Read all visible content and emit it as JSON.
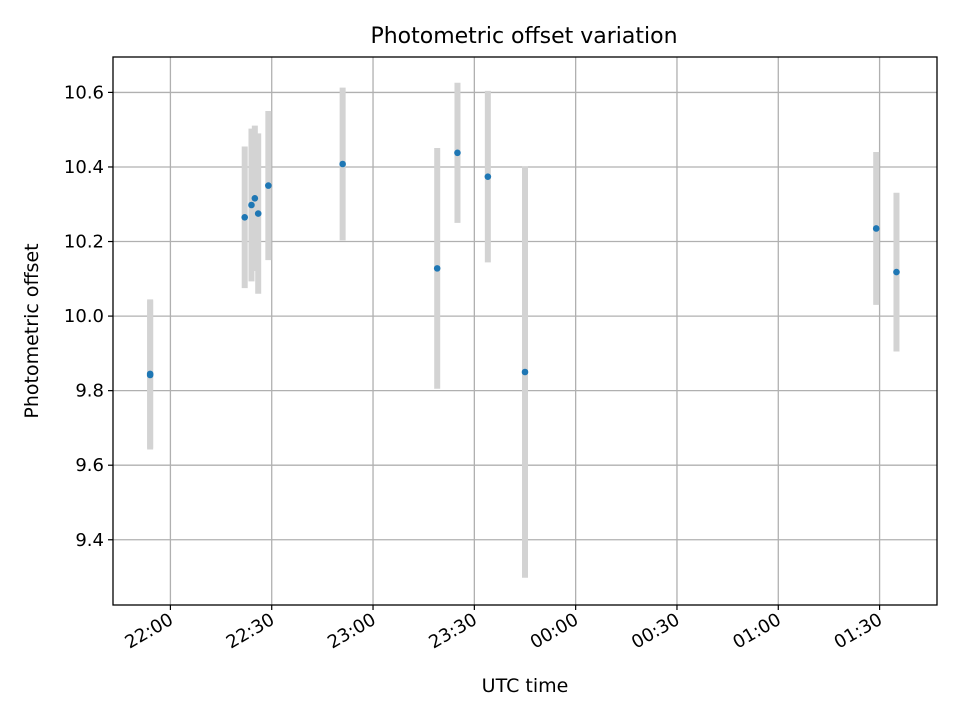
{
  "chart_data": {
    "type": "scatter",
    "title": "Photometric offset variation",
    "xlabel": "UTC time",
    "ylabel": "Photometric offset",
    "x_unit": "UTC time (HH:MM, hours on a continuous scale crossing midnight)",
    "xlim": [
      "21:43",
      "01:47"
    ],
    "ylim": [
      9.225,
      10.695
    ],
    "x_ticks": [
      "22:00",
      "22:30",
      "23:00",
      "23:30",
      "00:00",
      "00:30",
      "01:00",
      "01:30"
    ],
    "y_ticks": [
      "9.4",
      "9.6",
      "9.8",
      "10.0",
      "10.2",
      "10.4",
      "10.6"
    ],
    "grid": true,
    "colors": {
      "points": "#1f77b4",
      "errorbars": "#d3d3d3"
    },
    "series": [
      {
        "points": [
          {
            "x": "21:54",
            "y": 9.842,
            "err": 0.2
          },
          {
            "x": "21:54",
            "y": 9.845,
            "err": 0.2
          },
          {
            "x": "22:22",
            "y": 10.265,
            "err": 0.19
          },
          {
            "x": "22:24",
            "y": 10.298,
            "err": 0.205
          },
          {
            "x": "22:25",
            "y": 10.316,
            "err": 0.195
          },
          {
            "x": "22:26",
            "y": 10.275,
            "err": 0.215
          },
          {
            "x": "22:29",
            "y": 10.35,
            "err": 0.2
          },
          {
            "x": "22:51",
            "y": 10.408,
            "err": 0.205
          },
          {
            "x": "23:19",
            "y": 10.128,
            "err": 0.323
          },
          {
            "x": "23:25",
            "y": 10.438,
            "err": 0.188
          },
          {
            "x": "23:34",
            "y": 10.374,
            "err": 0.23
          },
          {
            "x": "23:45",
            "y": 9.85,
            "err": 0.552
          },
          {
            "x": "01:29",
            "y": 10.235,
            "err": 0.205
          },
          {
            "x": "01:35",
            "y": 10.118,
            "err": 0.213
          }
        ]
      }
    ]
  }
}
